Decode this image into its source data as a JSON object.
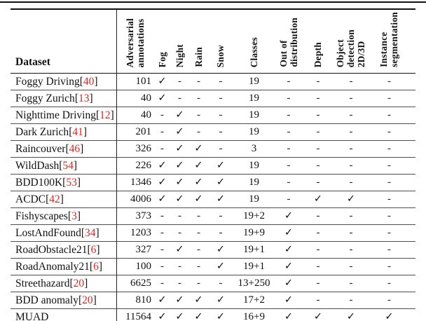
{
  "accent_colors": {
    "citation_red": "#e1251b",
    "rule_dark": "#111111",
    "rule_light": "#4d4d4d"
  },
  "table": {
    "dataset_header": "Dataset",
    "check_glyph": "✓",
    "dash_glyph": "-",
    "cite_open": "[",
    "cite_close": "]",
    "columns": [
      {
        "key": "aa",
        "label": "Adversarial\nannotations"
      },
      {
        "key": "fog",
        "label": "Fog"
      },
      {
        "key": "night",
        "label": "Night"
      },
      {
        "key": "rain",
        "label": "Rain"
      },
      {
        "key": "snow",
        "label": "Snow"
      },
      {
        "key": "classes",
        "label": "Classes"
      },
      {
        "key": "ood",
        "label": "Out of\ndistribution"
      },
      {
        "key": "depth",
        "label": "Depth"
      },
      {
        "key": "objdet",
        "label": "Object\ndetection\n2D/3D"
      },
      {
        "key": "instseg",
        "label": "Instance\nsegmentation"
      }
    ],
    "rows": [
      {
        "name": "Foggy Driving",
        "cite": "40",
        "aa": "101",
        "fog": true,
        "night": false,
        "rain": false,
        "snow": false,
        "classes": "19",
        "ood": false,
        "depth": false,
        "objdet": false,
        "instseg": false
      },
      {
        "name": "Foggy Zurich ",
        "cite": "13",
        "aa": "40",
        "fog": true,
        "night": false,
        "rain": false,
        "snow": false,
        "classes": "19",
        "ood": false,
        "depth": false,
        "objdet": false,
        "instseg": false
      },
      {
        "name": "Nighttime Driving ",
        "cite": "12",
        "aa": "40",
        "fog": false,
        "night": true,
        "rain": false,
        "snow": false,
        "classes": "19",
        "ood": false,
        "depth": false,
        "objdet": false,
        "instseg": false
      },
      {
        "name": "Dark Zurich ",
        "cite": "41",
        "aa": "201",
        "fog": false,
        "night": true,
        "rain": false,
        "snow": false,
        "classes": "19",
        "ood": false,
        "depth": false,
        "objdet": false,
        "instseg": false
      },
      {
        "name": "Raincouver ",
        "cite": "46",
        "aa": "326",
        "fog": false,
        "night": true,
        "rain": true,
        "snow": false,
        "classes": "3",
        "ood": false,
        "depth": false,
        "objdet": false,
        "instseg": false
      },
      {
        "name": "WildDash ",
        "cite": "54",
        "aa": "226",
        "fog": true,
        "night": true,
        "rain": true,
        "snow": true,
        "classes": "19",
        "ood": false,
        "depth": false,
        "objdet": false,
        "instseg": false
      },
      {
        "name": "BDD100K ",
        "cite": "53",
        "aa": "1346",
        "fog": true,
        "night": true,
        "rain": true,
        "snow": true,
        "classes": "19",
        "ood": false,
        "depth": false,
        "objdet": false,
        "instseg": false
      },
      {
        "name": "ACDC ",
        "cite": "42",
        "aa": "4006",
        "fog": true,
        "night": true,
        "rain": true,
        "snow": true,
        "classes": "19",
        "ood": false,
        "depth": true,
        "objdet": true,
        "instseg": false
      },
      {
        "name": "Fishyscapes ",
        "cite": "3",
        "aa": "373",
        "fog": false,
        "night": false,
        "rain": false,
        "snow": false,
        "classes": "19+2",
        "ood": true,
        "depth": false,
        "objdet": false,
        "instseg": false
      },
      {
        "name": "LostAndFound ",
        "cite": "34",
        "aa": "1203",
        "fog": false,
        "night": false,
        "rain": false,
        "snow": false,
        "classes": "19+9",
        "ood": true,
        "depth": false,
        "objdet": false,
        "instseg": false
      },
      {
        "name": "RoadObstacle21 ",
        "cite": "6",
        "aa": "327",
        "fog": false,
        "night": true,
        "rain": false,
        "snow": true,
        "classes": "19+1",
        "ood": true,
        "depth": false,
        "objdet": false,
        "instseg": false
      },
      {
        "name": "RoadAnomaly21 ",
        "cite": "6",
        "aa": "100",
        "fog": false,
        "night": false,
        "rain": false,
        "snow": true,
        "classes": "19+1",
        "ood": true,
        "depth": false,
        "objdet": false,
        "instseg": false
      },
      {
        "name": "Streethazard ",
        "cite": "20",
        "aa": "6625",
        "fog": false,
        "night": false,
        "rain": false,
        "snow": false,
        "classes": "13+250",
        "ood": true,
        "depth": false,
        "objdet": false,
        "instseg": false
      },
      {
        "name": "BDD anomaly ",
        "cite": "20",
        "aa": "810",
        "fog": true,
        "night": true,
        "rain": true,
        "snow": true,
        "classes": "17+2",
        "ood": true,
        "depth": false,
        "objdet": false,
        "instseg": false
      },
      {
        "name": "MUAD",
        "cite": null,
        "aa": "11564",
        "fog": true,
        "night": true,
        "rain": true,
        "snow": true,
        "classes": "16+9",
        "ood": true,
        "depth": true,
        "objdet": true,
        "instseg": true
      }
    ]
  }
}
